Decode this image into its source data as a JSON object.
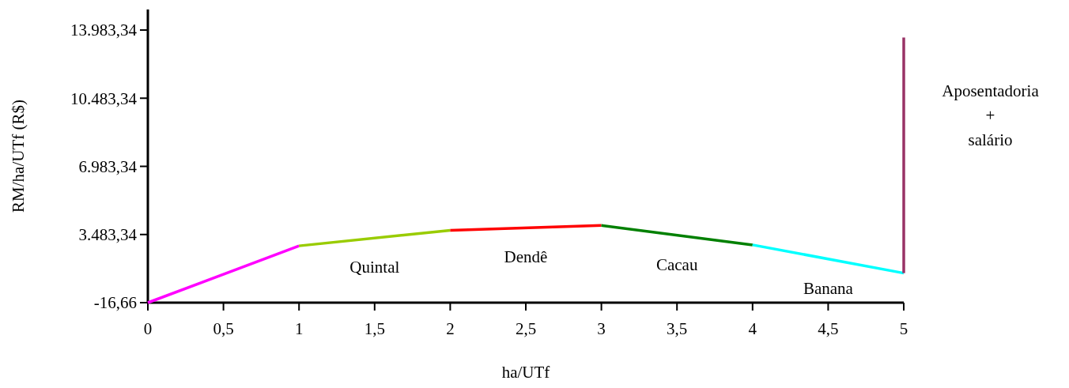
{
  "chart_data": {
    "type": "line",
    "xlabel": "ha/UTf",
    "ylabel": "RM/ha/UTf (R$)",
    "xlim": [
      0,
      5
    ],
    "ylim": [
      -16.66,
      15040
    ],
    "xticks": [
      0,
      {
        "value": 0.5,
        "label": "0,5"
      },
      1,
      {
        "value": 1.5,
        "label": "1,5"
      },
      2,
      {
        "value": 2.5,
        "label": "2,5"
      },
      3,
      {
        "value": 3.5,
        "label": "3,5"
      },
      4,
      {
        "value": 4.5,
        "label": "4,5"
      },
      5
    ],
    "yticks": [
      {
        "value": -16.66,
        "label": "-16,66"
      },
      {
        "value": 3483.34,
        "label": "3.483,34"
      },
      {
        "value": 6983.34,
        "label": "6.983,34"
      },
      {
        "value": 10483.34,
        "label": "10.483,34"
      },
      {
        "value": 13983.34,
        "label": "13.983,34"
      }
    ],
    "series": [
      {
        "color": "#ff00ff",
        "x": [
          0,
          1
        ],
        "values": [
          -16.66,
          2900
        ]
      },
      {
        "name": "Quintal",
        "color": "#99cc00",
        "x": [
          1,
          2
        ],
        "values": [
          2900,
          3700
        ]
      },
      {
        "name": "Dendê",
        "color": "#ff0000",
        "x": [
          2,
          3
        ],
        "values": [
          3700,
          3950
        ]
      },
      {
        "name": "Cacau",
        "color": "#008000",
        "x": [
          3,
          4
        ],
        "values": [
          3950,
          2950
        ]
      },
      {
        "name": "Banana",
        "color": "#00ffff",
        "x": [
          4,
          5
        ],
        "values": [
          2950,
          1500
        ]
      },
      {
        "name": "Aposentadoria + salário",
        "type": "bar",
        "color": "#993366",
        "x": [
          5
        ],
        "base": [
          1500
        ],
        "values": [
          12100
        ]
      }
    ]
  }
}
